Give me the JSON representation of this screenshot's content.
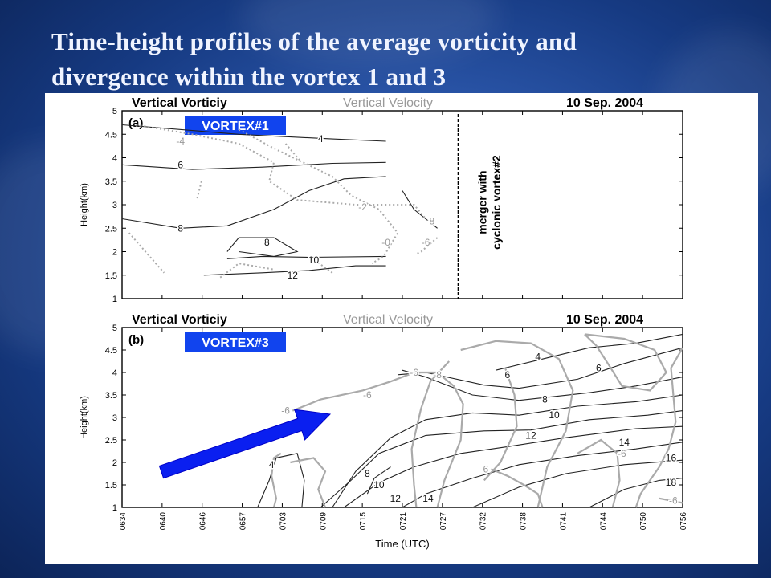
{
  "slide": {
    "title_line1": "Time-height profiles of the average vorticity and",
    "title_line2": "divergence within the vortex 1 and 3"
  },
  "chart_data": [
    {
      "type": "contour",
      "panel_label": "(a)",
      "header_left": "Vertical Vorticiy",
      "header_mid": "Vertical Velocity",
      "header_right": "10  Sep. 2004",
      "vortex_label": "VORTEX#1",
      "ylabel": "Height(km)",
      "ylim": [
        1,
        5
      ],
      "yticks": [
        "1",
        "1.5",
        "2",
        "2.5",
        "3",
        "3.5",
        "4",
        "4.5",
        "5"
      ],
      "contour_labels": [
        {
          "text": "4",
          "x": 8.5,
          "y": 4.4
        },
        {
          "text": "6",
          "x": 2.5,
          "y": 3.85
        },
        {
          "text": "8",
          "x": 2.5,
          "y": 2.5
        },
        {
          "text": "8",
          "x": 6.2,
          "y": 2.2
        },
        {
          "text": "10",
          "x": 8.2,
          "y": 1.82
        },
        {
          "text": "12",
          "x": 7.3,
          "y": 1.5
        },
        {
          "text": "-4",
          "x": 2.5,
          "y": 4.35
        },
        {
          "text": "-2",
          "x": 10.3,
          "y": 2.95
        },
        {
          "text": "-8",
          "x": 13.2,
          "y": 2.65
        },
        {
          "text": "-6",
          "x": 13.0,
          "y": 2.2
        },
        {
          "text": "-0",
          "x": 11.3,
          "y": 2.2
        }
      ],
      "annotation": [
        "merger with",
        "cyclonic vortex#2"
      ]
    },
    {
      "type": "contour",
      "panel_label": "(b)",
      "header_left": "Vertical Vorticiy",
      "header_mid": "Vertical Velocity",
      "header_right": "10  Sep. 2004",
      "vortex_label": "VORTEX#3",
      "ylabel": "Height(km)",
      "xlabel": "Time (UTC)",
      "ylim": [
        1,
        5
      ],
      "yticks": [
        "1",
        "1.5",
        "2",
        "2.5",
        "3",
        "3.5",
        "4",
        "4.5",
        "5"
      ],
      "x_categories": [
        "0634",
        "0640",
        "0646",
        "0657",
        "0703",
        "0709",
        "0715",
        "0721",
        "0727",
        "0732",
        "0738",
        "0741",
        "0744",
        "0750",
        "0756"
      ],
      "contour_labels": [
        {
          "text": "4",
          "x": 17.8,
          "y": 4.35
        },
        {
          "text": "6",
          "x": 20.4,
          "y": 4.1
        },
        {
          "text": "6",
          "x": 16.5,
          "y": 3.95
        },
        {
          "text": "8",
          "x": 18.1,
          "y": 3.4
        },
        {
          "text": "10",
          "x": 18.5,
          "y": 3.05
        },
        {
          "text": "12",
          "x": 17.5,
          "y": 2.6
        },
        {
          "text": "14",
          "x": 21.5,
          "y": 2.45
        },
        {
          "text": "16",
          "x": 23.5,
          "y": 2.1
        },
        {
          "text": "18",
          "x": 23.5,
          "y": 1.55
        },
        {
          "text": "8",
          "x": 10.5,
          "y": 1.75
        },
        {
          "text": "10",
          "x": 11.0,
          "y": 1.5
        },
        {
          "text": "12",
          "x": 11.7,
          "y": 1.2
        },
        {
          "text": "14",
          "x": 13.1,
          "y": 1.2
        },
        {
          "text": "4",
          "x": 6.4,
          "y": 1.95
        },
        {
          "text": "-6",
          "x": 12.5,
          "y": 4.0
        },
        {
          "text": "-6",
          "x": 10.5,
          "y": 3.5
        },
        {
          "text": "-6",
          "x": 7.0,
          "y": 3.15
        },
        {
          "text": "-8",
          "x": 13.5,
          "y": 3.95
        },
        {
          "text": "-6",
          "x": 15.5,
          "y": 1.85
        },
        {
          "text": "-6",
          "x": 21.4,
          "y": 2.2
        },
        {
          "text": "-6",
          "x": 23.6,
          "y": 1.15
        }
      ]
    }
  ]
}
